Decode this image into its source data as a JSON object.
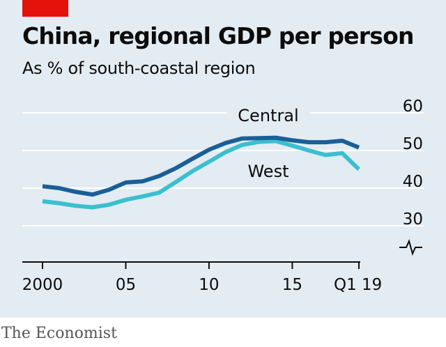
{
  "header": {
    "title": "China, regional GDP per person",
    "subtitle": "As % of south-coastal region"
  },
  "footer": {
    "source": "The Economist"
  },
  "colors": {
    "background": "#e3ecf2",
    "accent_tag": "#e3120b",
    "central": "#1a5f97",
    "west": "#3bbfd0",
    "grid": "#ffffff",
    "axis": "#0c0c0c"
  },
  "chart_data": {
    "type": "line",
    "title": "China, regional GDP per person",
    "subtitle": "As % of south-coastal region",
    "xlim": [
      2000,
      2019
    ],
    "ylim": [
      30,
      60
    ],
    "y_ticks": [
      30,
      40,
      50,
      60
    ],
    "x_ticks": [
      {
        "value": 2000,
        "label": "2000"
      },
      {
        "value": 2005,
        "label": "05"
      },
      {
        "value": 2010,
        "label": "10"
      },
      {
        "value": 2015,
        "label": "15"
      },
      {
        "value": 2019,
        "label": "Q1 19"
      }
    ],
    "axis_break": true,
    "grid": true,
    "series": [
      {
        "name": "Central",
        "x": [
          2000,
          2001,
          2002,
          2003,
          2004,
          2005,
          2006,
          2007,
          2008,
          2009,
          2010,
          2011,
          2012,
          2013,
          2014,
          2015,
          2016,
          2017,
          2018,
          2019
        ],
        "values": [
          40.5,
          40.0,
          39.0,
          38.3,
          39.6,
          41.5,
          41.8,
          43.2,
          45.3,
          47.8,
          50.2,
          52.0,
          53.2,
          53.3,
          53.4,
          52.7,
          52.2,
          52.2,
          52.6,
          50.8
        ]
      },
      {
        "name": "West",
        "x": [
          2000,
          2001,
          2002,
          2003,
          2004,
          2005,
          2006,
          2007,
          2008,
          2009,
          2010,
          2011,
          2012,
          2013,
          2014,
          2015,
          2016,
          2017,
          2018,
          2019
        ],
        "values": [
          36.5,
          36.0,
          35.3,
          34.9,
          35.6,
          36.9,
          37.8,
          38.8,
          41.6,
          44.5,
          47.0,
          49.6,
          51.5,
          52.3,
          52.5,
          51.3,
          50.0,
          48.8,
          49.3,
          45.0
        ]
      }
    ]
  }
}
